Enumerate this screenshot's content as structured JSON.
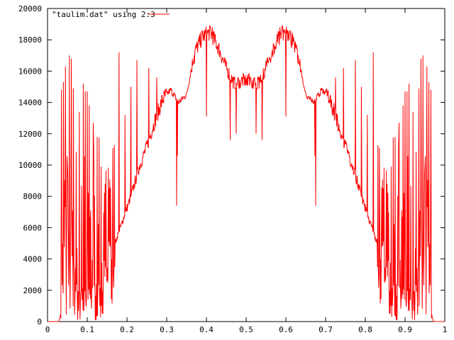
{
  "chart_data": {
    "type": "line",
    "title": "",
    "xlabel": "",
    "ylabel": "",
    "xlim": [
      0,
      1
    ],
    "ylim": [
      0,
      20000
    ],
    "grid": false,
    "legend_placement": "top-left",
    "x_ticks": [
      "0",
      "0.1",
      "0.2",
      "0.3",
      "0.4",
      "0.5",
      "0.6",
      "0.7",
      "0.8",
      "0.9",
      "1"
    ],
    "y_ticks": [
      "0",
      "2000",
      "4000",
      "6000",
      "8000",
      "10000",
      "12000",
      "14000",
      "16000",
      "18000",
      "20000"
    ],
    "series": [
      {
        "name": "\"taulim.dat\" using 2:3",
        "color": "#ff0000",
        "mirror_about": 0.5,
        "sample_x_range": [
          0.0,
          0.5
        ],
        "envelope": [
          [
            0.0,
            0
          ],
          [
            0.028,
            0
          ],
          [
            0.032,
            300
          ],
          [
            0.035,
            1500
          ],
          [
            0.04,
            4000
          ],
          [
            0.05,
            7000
          ],
          [
            0.07,
            2000
          ],
          [
            0.09,
            1500
          ],
          [
            0.11,
            1800
          ],
          [
            0.13,
            2500
          ],
          [
            0.15,
            3500
          ],
          [
            0.17,
            5000
          ],
          [
            0.19,
            6500
          ],
          [
            0.21,
            8000
          ],
          [
            0.23,
            9800
          ],
          [
            0.25,
            11200
          ],
          [
            0.27,
            12800
          ],
          [
            0.29,
            14200
          ],
          [
            0.31,
            14800
          ],
          [
            0.33,
            14000
          ],
          [
            0.35,
            14500
          ],
          [
            0.37,
            17200
          ],
          [
            0.39,
            18200
          ],
          [
            0.41,
            18500
          ],
          [
            0.43,
            17500
          ],
          [
            0.45,
            16200
          ],
          [
            0.47,
            15200
          ],
          [
            0.49,
            15400
          ],
          [
            0.5,
            15400
          ]
        ],
        "spikes": [
          [
            0.035,
            14800
          ],
          [
            0.04,
            15300
          ],
          [
            0.045,
            16300
          ],
          [
            0.055,
            17000
          ],
          [
            0.06,
            16800
          ],
          [
            0.065,
            14900
          ],
          [
            0.08,
            13400
          ],
          [
            0.09,
            15200
          ],
          [
            0.095,
            14700
          ],
          [
            0.1,
            14700
          ],
          [
            0.105,
            13800
          ],
          [
            0.115,
            12700
          ],
          [
            0.125,
            11800
          ],
          [
            0.135,
            9900
          ],
          [
            0.145,
            8800
          ],
          [
            0.155,
            8500
          ],
          [
            0.18,
            17200
          ],
          [
            0.195,
            13200
          ],
          [
            0.21,
            15000
          ],
          [
            0.225,
            16700
          ],
          [
            0.255,
            16200
          ],
          [
            0.275,
            15600
          ],
          [
            0.325,
            7400
          ],
          [
            0.327,
            10600
          ],
          [
            0.37,
            16500
          ],
          [
            0.4,
            13100
          ],
          [
            0.415,
            18800
          ],
          [
            0.46,
            11600
          ],
          [
            0.475,
            12000
          ],
          [
            0.485,
            14900
          ]
        ]
      }
    ]
  }
}
